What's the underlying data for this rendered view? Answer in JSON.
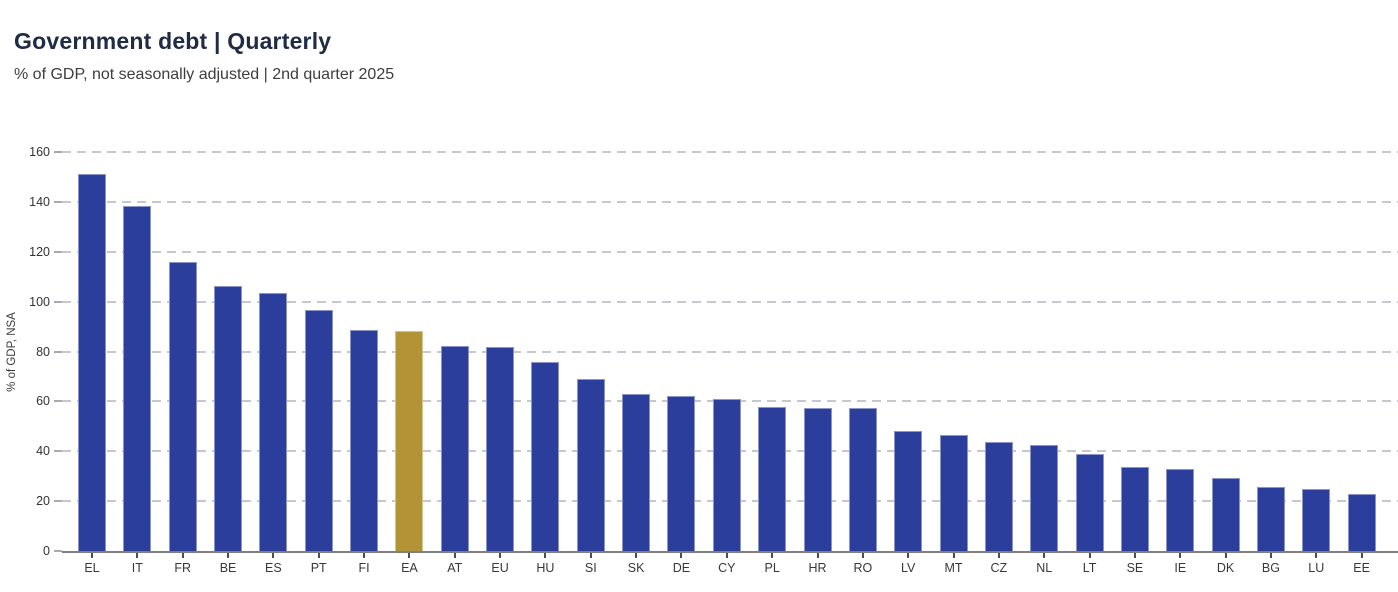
{
  "header": {
    "title": "Government debt | Quarterly",
    "subtitle": "% of GDP, not seasonally adjusted | 2nd quarter 2025"
  },
  "chart_data": {
    "type": "bar",
    "title": "Government debt | Quarterly",
    "subtitle": "% of GDP, not seasonally adjusted | 2nd quarter 2025",
    "categories": [
      "EL",
      "IT",
      "FR",
      "BE",
      "ES",
      "PT",
      "FI",
      "EA",
      "AT",
      "EU",
      "HU",
      "SI",
      "SK",
      "DE",
      "CY",
      "PL",
      "HR",
      "RO",
      "LV",
      "MT",
      "CZ",
      "NL",
      "LT",
      "SE",
      "IE",
      "DK",
      "BG",
      "LU",
      "EE"
    ],
    "values": [
      151.2,
      138.3,
      115.8,
      106.1,
      103.3,
      96.7,
      88.5,
      88.2,
      82.2,
      81.8,
      75.9,
      69.0,
      62.9,
      62.3,
      60.9,
      57.9,
      57.4,
      57.2,
      48.0,
      46.6,
      43.7,
      42.5,
      39.0,
      33.8,
      32.7,
      29.2,
      25.7,
      24.9,
      22.8
    ],
    "xlabel": "",
    "ylabel": "% of GDP, NSA",
    "ylim": [
      0,
      160
    ],
    "yticks": [
      0,
      20,
      40,
      60,
      80,
      100,
      120,
      140,
      160
    ],
    "grid": "horizontal-dashed",
    "legend_position": "none",
    "bar_color": "#2C3E9C",
    "highlight_category": "EA",
    "highlight_color": "#B29437"
  }
}
